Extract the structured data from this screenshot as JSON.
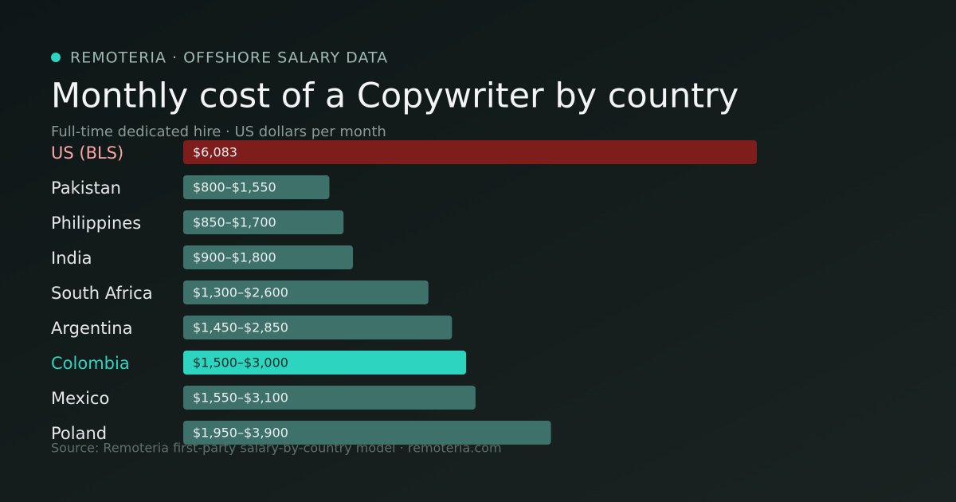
{
  "eyebrow": "REMOTERIA · OFFSHORE SALARY DATA",
  "chart_data": {
    "type": "bar",
    "orientation": "horizontal",
    "title": "Monthly cost of a Copywriter by country",
    "subtitle": "Full-time dedicated hire · US dollars per month",
    "categories": [
      "US (BLS)",
      "Pakistan",
      "Philippines",
      "India",
      "South Africa",
      "Argentina",
      "Colombia",
      "Mexico",
      "Poland"
    ],
    "values": [
      6083,
      1550,
      1700,
      1800,
      2600,
      2850,
      3000,
      3100,
      3900
    ],
    "value_labels": [
      "$6,083",
      "$800–$1,550",
      "$850–$1,700",
      "$900–$1,800",
      "$1,300–$2,600",
      "$1,450–$2,850",
      "$1,500–$3,000",
      "$1,550–$3,100",
      "$1,950–$3,900"
    ],
    "colors": [
      "#7f1d1d",
      "#3f716b",
      "#3f716b",
      "#3f716b",
      "#3f716b",
      "#3f716b",
      "#2dd4bf",
      "#3f716b",
      "#3f716b"
    ],
    "label_colors": [
      "#fca5a5",
      "#e5e7eb",
      "#e5e7eb",
      "#e5e7eb",
      "#e5e7eb",
      "#e5e7eb",
      "#2dd4bf",
      "#e5e7eb",
      "#e5e7eb"
    ],
    "source": "Source: Remoteria first-party salary-by-country model · remoteria.com"
  }
}
